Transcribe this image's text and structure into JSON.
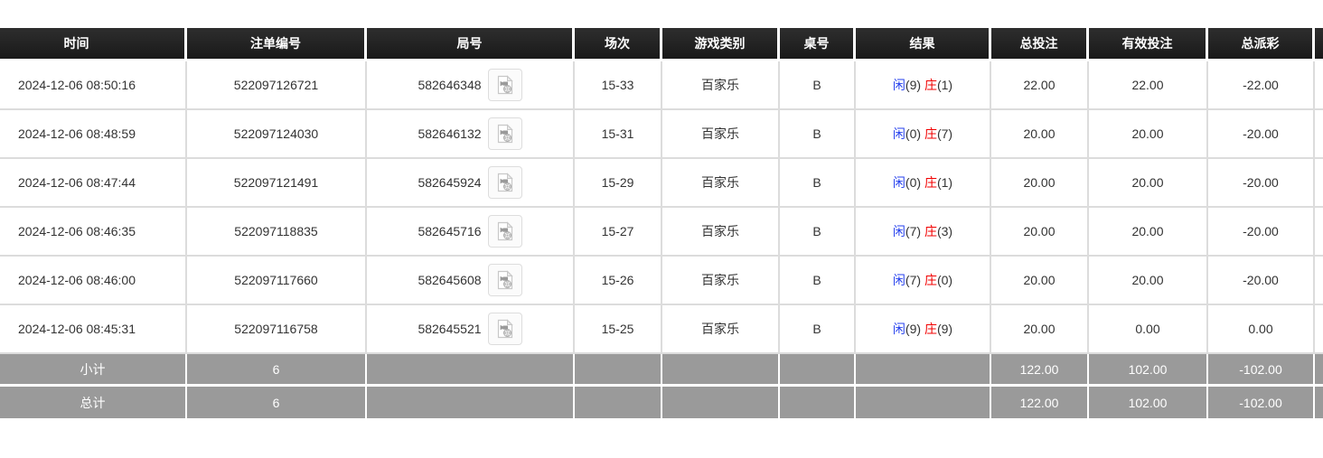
{
  "table": {
    "columns": [
      {
        "key": "time",
        "label": "时间"
      },
      {
        "key": "bet_id",
        "label": "注单编号"
      },
      {
        "key": "round_id",
        "label": "局号"
      },
      {
        "key": "session",
        "label": "场次"
      },
      {
        "key": "game_type",
        "label": "游戏类别"
      },
      {
        "key": "table_no",
        "label": "桌号"
      },
      {
        "key": "result",
        "label": "结果"
      },
      {
        "key": "total_bet",
        "label": "总投注"
      },
      {
        "key": "valid_bet",
        "label": "有效投注"
      },
      {
        "key": "total_payout",
        "label": "总派彩"
      },
      {
        "key": "extra",
        "label": ""
      }
    ],
    "rows": [
      {
        "time": "2024-12-06 08:50:16",
        "bet_id": "522097126721",
        "round_id": "582646348",
        "session": "15-33",
        "game_type": "百家乐",
        "table_no": "B",
        "player_label": "闲",
        "player_score": "(9)",
        "banker_label": "庄",
        "banker_score": "(1)",
        "total_bet": "22.00",
        "valid_bet": "22.00",
        "total_payout": "-22.00"
      },
      {
        "time": "2024-12-06 08:48:59",
        "bet_id": "522097124030",
        "round_id": "582646132",
        "session": "15-31",
        "game_type": "百家乐",
        "table_no": "B",
        "player_label": "闲",
        "player_score": "(0)",
        "banker_label": "庄",
        "banker_score": "(7)",
        "total_bet": "20.00",
        "valid_bet": "20.00",
        "total_payout": "-20.00"
      },
      {
        "time": "2024-12-06 08:47:44",
        "bet_id": "522097121491",
        "round_id": "582645924",
        "session": "15-29",
        "game_type": "百家乐",
        "table_no": "B",
        "player_label": "闲",
        "player_score": "(0)",
        "banker_label": "庄",
        "banker_score": "(1)",
        "total_bet": "20.00",
        "valid_bet": "20.00",
        "total_payout": "-20.00"
      },
      {
        "time": "2024-12-06 08:46:35",
        "bet_id": "522097118835",
        "round_id": "582645716",
        "session": "15-27",
        "game_type": "百家乐",
        "table_no": "B",
        "player_label": "闲",
        "player_score": "(7)",
        "banker_label": "庄",
        "banker_score": "(3)",
        "total_bet": "20.00",
        "valid_bet": "20.00",
        "total_payout": "-20.00"
      },
      {
        "time": "2024-12-06 08:46:00",
        "bet_id": "522097117660",
        "round_id": "582645608",
        "session": "15-26",
        "game_type": "百家乐",
        "table_no": "B",
        "player_label": "闲",
        "player_score": "(7)",
        "banker_label": "庄",
        "banker_score": "(0)",
        "total_bet": "20.00",
        "valid_bet": "20.00",
        "total_payout": "-20.00"
      },
      {
        "time": "2024-12-06 08:45:31",
        "bet_id": "522097116758",
        "round_id": "582645521",
        "session": "15-25",
        "game_type": "百家乐",
        "table_no": "B",
        "player_label": "闲",
        "player_score": "(9)",
        "banker_label": "庄",
        "banker_score": "(9)",
        "total_bet": "20.00",
        "valid_bet": "0.00",
        "total_payout": "0.00"
      }
    ],
    "summary_rows": [
      {
        "label": "小计",
        "count": "6",
        "total_bet": "122.00",
        "valid_bet": "102.00",
        "total_payout": "-102.00"
      },
      {
        "label": "总计",
        "count": "6",
        "total_bet": "122.00",
        "valid_bet": "102.00",
        "total_payout": "-102.00"
      }
    ],
    "icons": {
      "round_video": "video-replay-icon"
    },
    "colors": {
      "header_bg": "#1f1f1f",
      "summary_bg": "#9a9a9a",
      "amount_blue": "#3a6af2",
      "player_blue": "#2742ee",
      "banker_red": "#f20000",
      "negative_red": "#ff0000",
      "body_text": "#333333",
      "grid_line": "#dcdcdc"
    }
  }
}
